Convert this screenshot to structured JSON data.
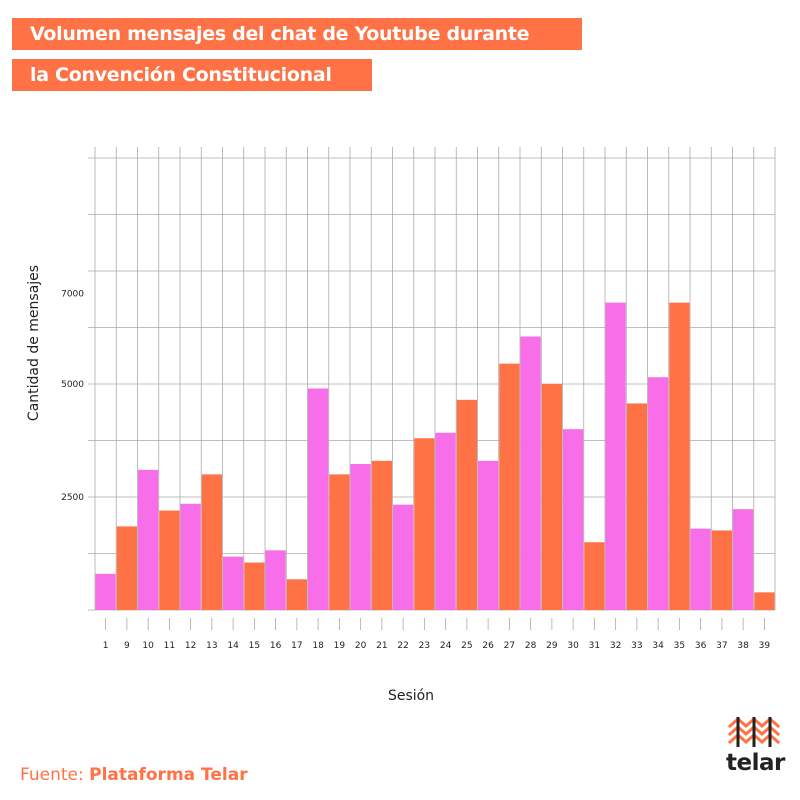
{
  "title": {
    "line1": "Volumen mensajes del chat de Youtube durante",
    "line2": "la Convención Constitucional"
  },
  "source": {
    "prefix": "Fuente: ",
    "name": "Plataforma Telar"
  },
  "logo": {
    "text": "telar"
  },
  "colors": {
    "orange": "#ff7246",
    "pink": "#f76ee8"
  },
  "chart_data": {
    "type": "bar",
    "title": "Volumen mensajes del chat de Youtube durante la Convención Constitucional",
    "xlabel": "Sesión",
    "ylabel": "Cantidad de mensajes",
    "ylim": [
      0,
      10000
    ],
    "yticks": [
      2500,
      5000,
      7000
    ],
    "grid": true,
    "categories": [
      "1",
      "9",
      "10",
      "11",
      "12",
      "13",
      "14",
      "15",
      "16",
      "17",
      "18",
      "19",
      "20",
      "21",
      "22",
      "23",
      "24",
      "25",
      "26",
      "27",
      "28",
      "29",
      "30",
      "31",
      "32",
      "33",
      "34",
      "35",
      "36",
      "37",
      "38",
      "39"
    ],
    "values": [
      800,
      1850,
      3100,
      2200,
      2350,
      3000,
      1180,
      1050,
      1320,
      680,
      4900,
      3000,
      3230,
      3300,
      2330,
      3800,
      3920,
      4650,
      3300,
      5450,
      6050,
      5000,
      4000,
      1500,
      6800,
      4570,
      5150,
      6800,
      1800,
      1760,
      2230,
      390
    ],
    "bar_colors": [
      "#f76ee8",
      "#ff7246",
      "#f76ee8",
      "#ff7246",
      "#f76ee8",
      "#ff7246",
      "#f76ee8",
      "#ff7246",
      "#f76ee8",
      "#ff7246",
      "#f76ee8",
      "#ff7246",
      "#f76ee8",
      "#ff7246",
      "#f76ee8",
      "#ff7246",
      "#f76ee8",
      "#ff7246",
      "#f76ee8",
      "#ff7246",
      "#f76ee8",
      "#ff7246",
      "#f76ee8",
      "#ff7246",
      "#f76ee8",
      "#ff7246",
      "#f76ee8",
      "#ff7246",
      "#f76ee8",
      "#ff7246",
      "#f76ee8",
      "#ff7246"
    ]
  }
}
